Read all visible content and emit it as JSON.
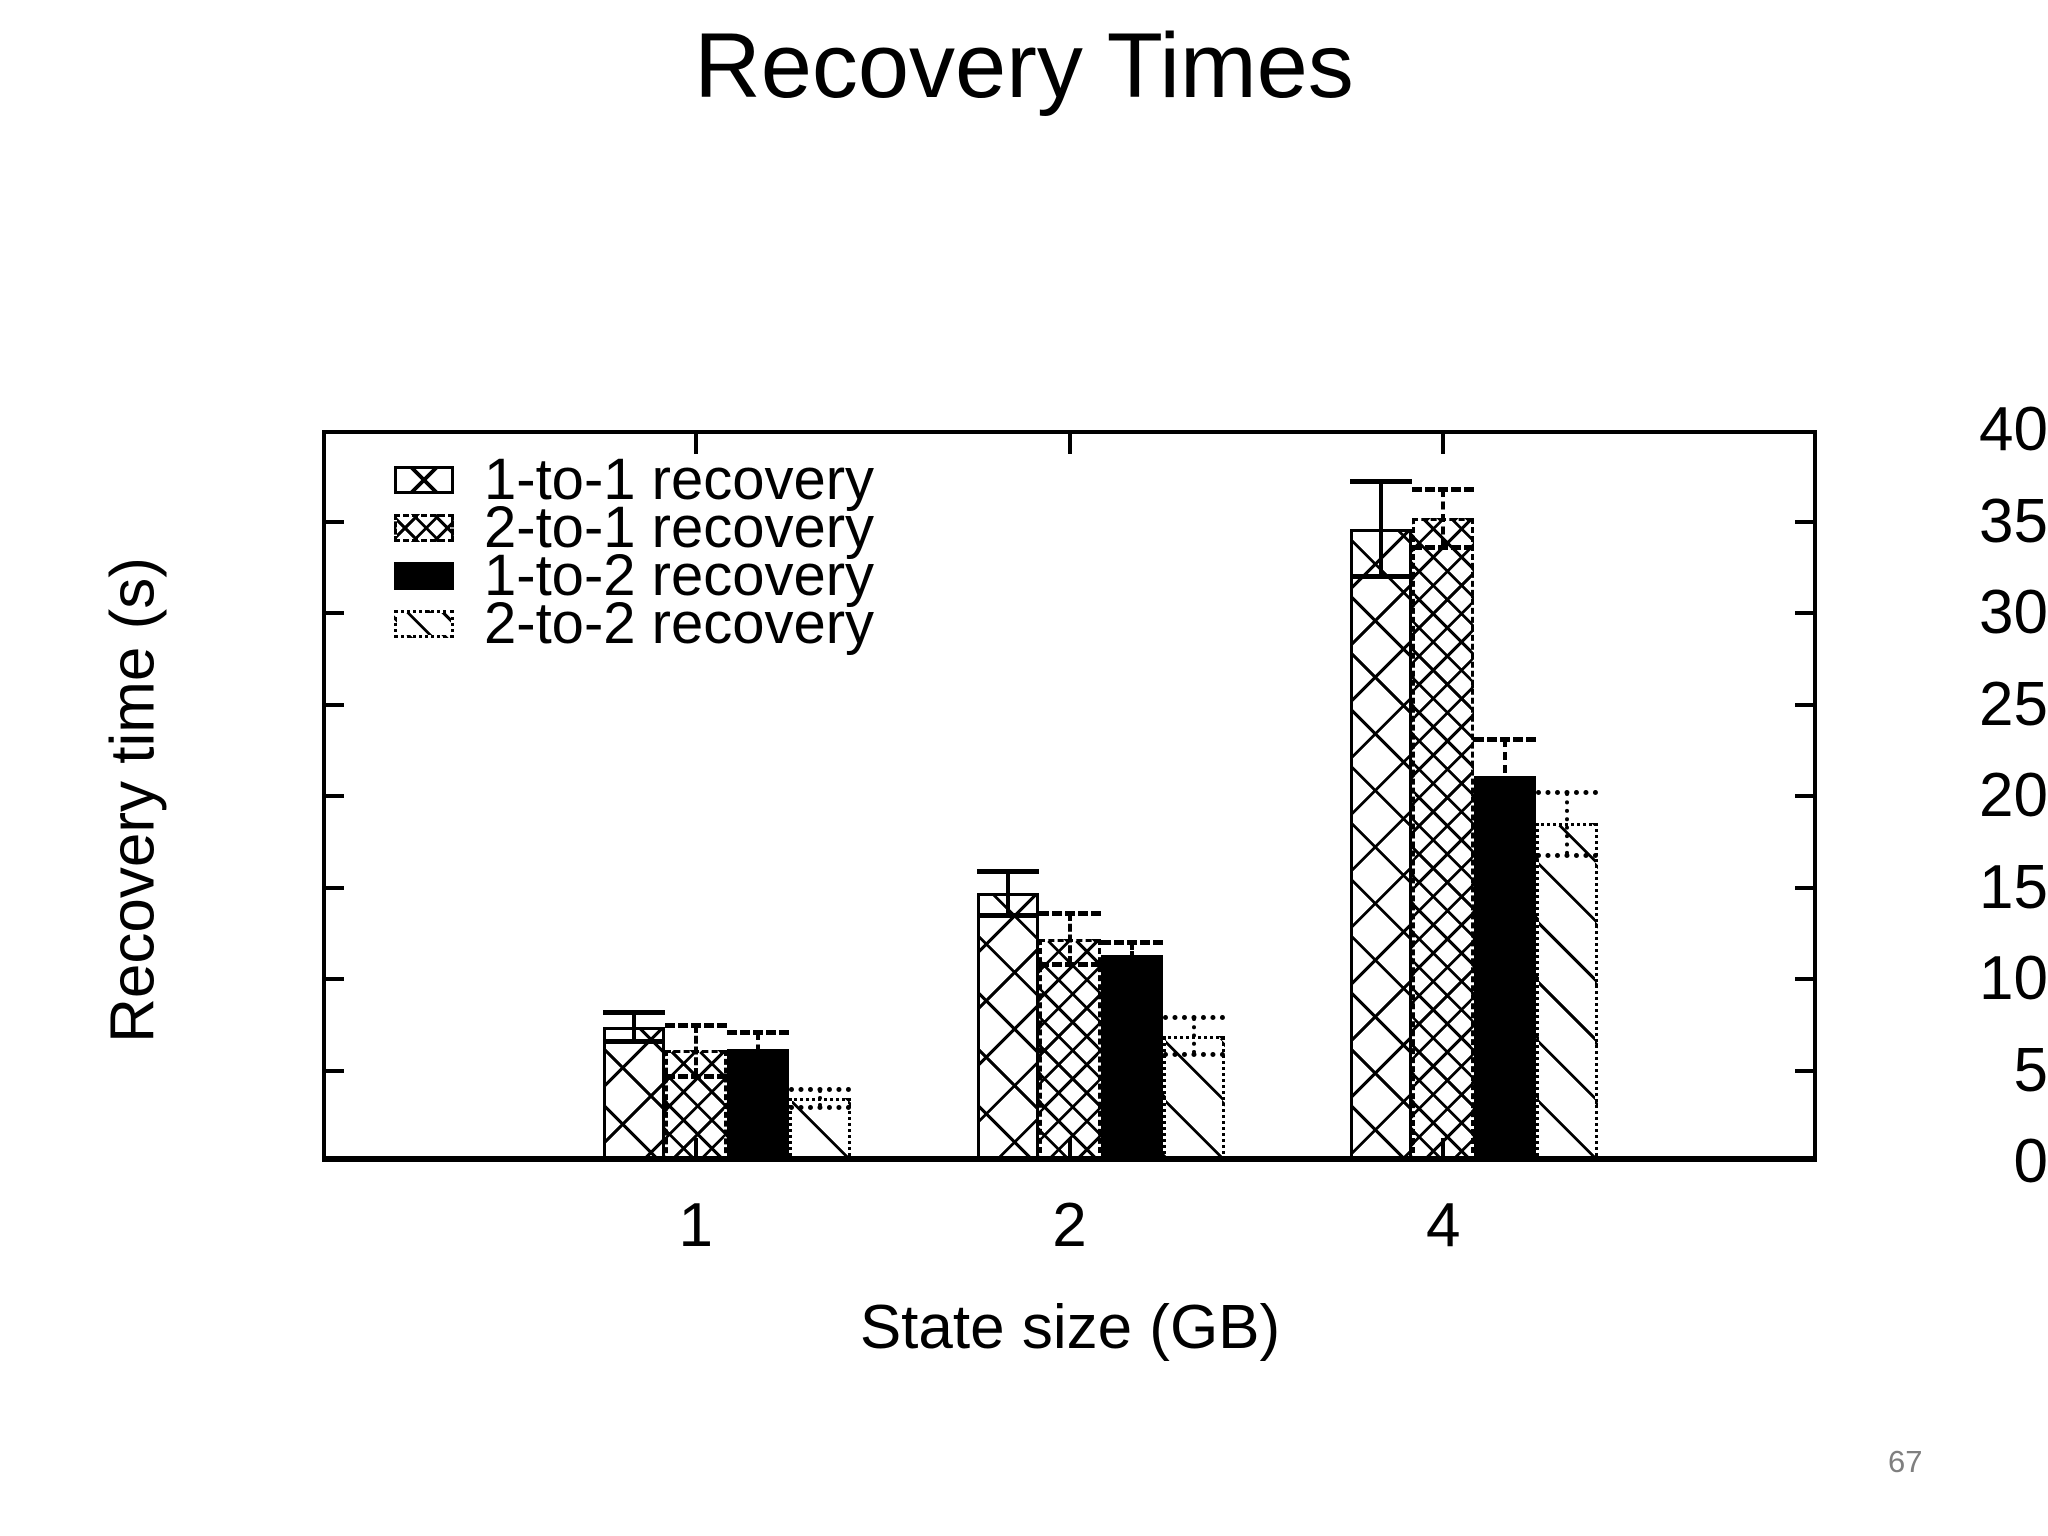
{
  "title": "Recovery Times",
  "page_number": "67",
  "colors": {
    "foreground": "#000000",
    "background": "#ffffff",
    "page_number": "#7f7f7f"
  },
  "chart_data": {
    "type": "bar",
    "title": "Recovery Times",
    "xlabel": "State size (GB)",
    "ylabel": "Recovery time (s)",
    "categories": [
      "1",
      "2",
      "4"
    ],
    "ylim": [
      0,
      40
    ],
    "yticks": [
      0,
      5,
      10,
      15,
      20,
      25,
      30,
      35,
      40
    ],
    "grid": false,
    "legend_position": "top-left-inside",
    "legend_entries": [
      "1-to-1 recovery",
      "2-to-1 recovery",
      "1-to-2 recovery",
      "2-to-2 recovery"
    ],
    "series": [
      {
        "name": "1-to-1 recovery",
        "pattern": "wide-cross-hatch",
        "values": [
          7.4,
          14.7,
          34.6
        ],
        "errors": [
          0.8,
          1.2,
          2.6
        ]
      },
      {
        "name": "2-to-1 recovery",
        "pattern": "dense-cross-hatch",
        "values": [
          6.1,
          12.2,
          35.2
        ],
        "errors": [
          1.4,
          1.4,
          1.6
        ]
      },
      {
        "name": "1-to-2 recovery",
        "pattern": "solid-black",
        "values": [
          6.2,
          11.3,
          21.1
        ],
        "errors": [
          0.9,
          0.7,
          2.0
        ]
      },
      {
        "name": "2-to-2 recovery",
        "pattern": "sparse-diagonal",
        "values": [
          3.5,
          6.9,
          18.5
        ],
        "errors": [
          0.5,
          1.0,
          1.7
        ]
      }
    ]
  }
}
